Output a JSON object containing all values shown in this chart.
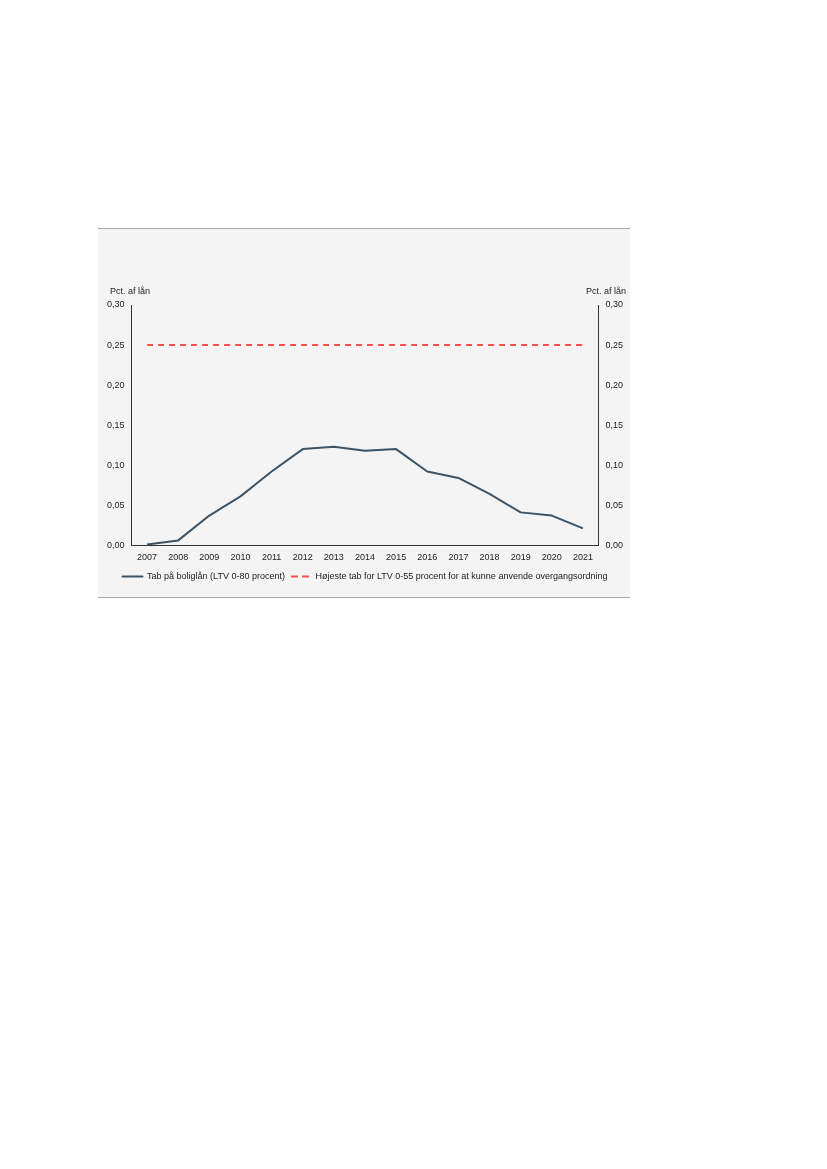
{
  "chart_data": {
    "type": "line",
    "ylabel": "Pct. af lån",
    "y2label": "Pct. af lån",
    "categories": [
      "2007",
      "2008",
      "2009",
      "2010",
      "2011",
      "2012",
      "2013",
      "2014",
      "2015",
      "2016",
      "2017",
      "2018",
      "2019",
      "2020",
      "2021"
    ],
    "series": [
      {
        "name": "Tab på boliglån (LTV 0-80 procent)",
        "color": "#3b5366",
        "line_style": "solid",
        "values": [
          0.001,
          0.006,
          0.037,
          0.061,
          0.092,
          0.12,
          0.123,
          0.118,
          0.12,
          0.092,
          0.084,
          0.064,
          0.041,
          0.037,
          0.021
        ]
      },
      {
        "name": "Højeste tab for LTV 0-55 procent for at kunne anvende overgangsordning",
        "color": "#ff4f4f",
        "line_style": "dashed",
        "values": [
          0.25,
          0.25,
          0.25,
          0.25,
          0.25,
          0.25,
          0.25,
          0.25,
          0.25,
          0.25,
          0.25,
          0.25,
          0.25,
          0.25,
          0.25
        ]
      }
    ],
    "ylim": [
      0,
      0.3
    ],
    "yticks": [
      {
        "value": 0,
        "label": "0,00"
      },
      {
        "value": 0.05,
        "label": "0,05"
      },
      {
        "value": 0.1,
        "label": "0,10"
      },
      {
        "value": 0.15,
        "label": "0,15"
      },
      {
        "value": 0.2,
        "label": "0,20"
      },
      {
        "value": 0.25,
        "label": "0,25"
      },
      {
        "value": 0.3,
        "label": "0,30"
      }
    ],
    "y2lim": [
      0,
      0.3
    ],
    "y2ticks": [
      {
        "value": 0,
        "label": "0,00"
      },
      {
        "value": 0.05,
        "label": "0,05"
      },
      {
        "value": 0.1,
        "label": "0,10"
      },
      {
        "value": 0.15,
        "label": "0,15"
      },
      {
        "value": 0.2,
        "label": "0,20"
      },
      {
        "value": 0.25,
        "label": "0,25"
      },
      {
        "value": 0.3,
        "label": "0,30"
      }
    ],
    "grid": false,
    "legend": "bottom",
    "marker": "none"
  }
}
